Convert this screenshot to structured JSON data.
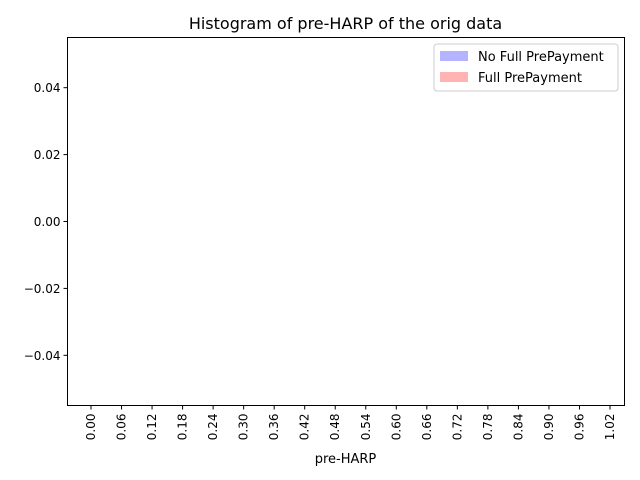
{
  "chart_data": {
    "type": "bar",
    "title": "Histogram of pre-HARP of the orig data",
    "xlabel": "pre-HARP",
    "ylabel": "",
    "x_ticks": [
      "0.00",
      "0.06",
      "0.12",
      "0.18",
      "0.24",
      "0.30",
      "0.36",
      "0.42",
      "0.48",
      "0.54",
      "0.60",
      "0.66",
      "0.72",
      "0.78",
      "0.84",
      "0.90",
      "0.96",
      "1.02"
    ],
    "y_ticks": [
      "0.04",
      "0.02",
      "0.00",
      "−0.02",
      "−0.04"
    ],
    "y_tick_values": [
      0.04,
      0.02,
      0.0,
      -0.02,
      -0.04
    ],
    "ylim": [
      -0.055,
      0.055
    ],
    "grid": false,
    "legend_position": "top-right",
    "series": [
      {
        "name": "No Full PrePayment",
        "color": "#b3b3ff",
        "values": []
      },
      {
        "name": "Full PrePayment",
        "color": "#ffb3b3",
        "values": []
      }
    ]
  }
}
